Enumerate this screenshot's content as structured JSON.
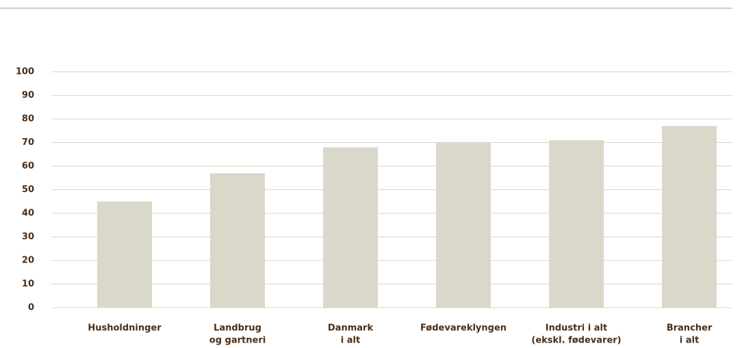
{
  "chart_data": {
    "type": "bar",
    "categories": [
      [
        "Husholdninger"
      ],
      [
        "Landbrug",
        "og gartneri"
      ],
      [
        "Danmark",
        "i alt"
      ],
      [
        "Fødevareklyngen"
      ],
      [
        "Industri i alt",
        "(ekskl. fødevarer)"
      ],
      [
        "Brancher",
        "i alt"
      ]
    ],
    "values": [
      45,
      57,
      68,
      70,
      71,
      77
    ],
    "color": "#dad8ca",
    "ylim": [
      0,
      100
    ],
    "yticks": [
      0,
      10,
      20,
      30,
      40,
      50,
      60,
      70,
      80,
      90,
      100
    ],
    "grid": true
  }
}
